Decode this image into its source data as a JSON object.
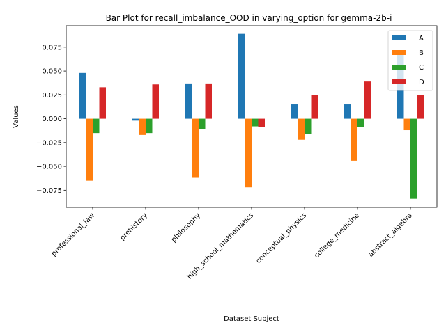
{
  "chart_data": {
    "type": "bar",
    "title": "Bar Plot for recall_imbalance_OOD in varying_option for gemma-2b-i",
    "xlabel": "Dataset Subject",
    "ylabel": "Values",
    "categories": [
      "professional_law",
      "prehistory",
      "philosophy",
      "high_school_mathematics",
      "conceptual_physics",
      "college_medicine",
      "abstract_algebra"
    ],
    "series": [
      {
        "name": "A",
        "color": "#1f77b4",
        "values": [
          0.048,
          -0.002,
          0.037,
          0.089,
          0.015,
          0.015,
          0.067
        ]
      },
      {
        "name": "B",
        "color": "#ff7f0e",
        "values": [
          -0.065,
          -0.017,
          -0.062,
          -0.072,
          -0.022,
          -0.044,
          -0.012
        ]
      },
      {
        "name": "C",
        "color": "#2ca02c",
        "values": [
          -0.015,
          -0.015,
          -0.011,
          -0.008,
          -0.016,
          -0.009,
          -0.084
        ]
      },
      {
        "name": "D",
        "color": "#d62728",
        "values": [
          0.033,
          0.036,
          0.037,
          -0.009,
          0.025,
          0.039,
          0.025
        ]
      }
    ],
    "ylim": [
      -0.093,
      0.0975
    ],
    "yticks": [
      -0.075,
      -0.05,
      -0.025,
      0.0,
      0.025,
      0.05,
      0.075
    ],
    "ytick_labels": [
      "−0.075",
      "−0.050",
      "−0.025",
      "0.000",
      "0.025",
      "0.050",
      "0.075"
    ],
    "grid": false,
    "legend_position": "top-right"
  }
}
